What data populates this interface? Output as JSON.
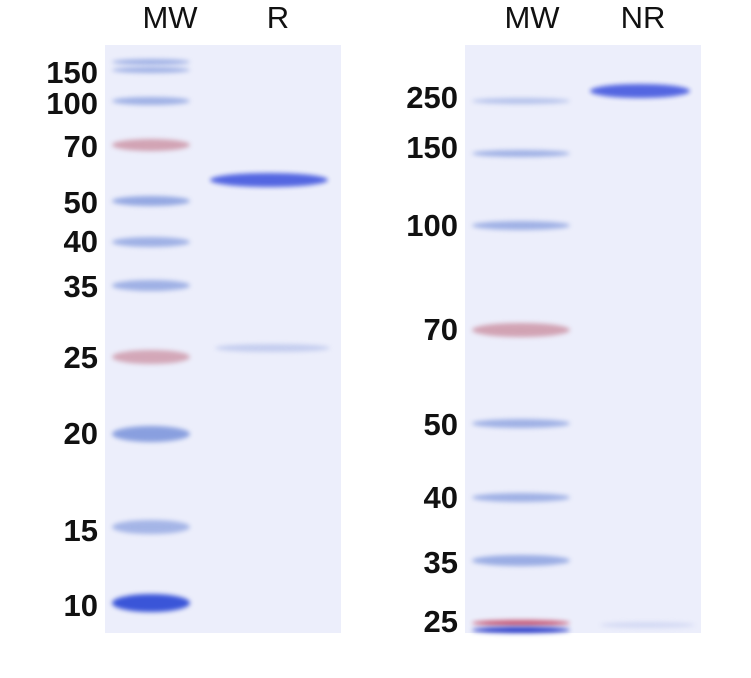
{
  "left_panel": {
    "lane_headers": [
      "MW",
      "R"
    ],
    "ladder_labels": [
      "150",
      "100",
      "70",
      "50",
      "40",
      "35",
      "25",
      "20",
      "15",
      "10"
    ]
  },
  "right_panel": {
    "lane_headers": [
      "MW",
      "NR"
    ],
    "ladder_labels": [
      "250",
      "150",
      "100",
      "70",
      "50",
      "40",
      "35",
      "25"
    ]
  },
  "colors": {
    "gel_background": "#eceefb",
    "marker_blue": "#7f97dc",
    "marker_red": "#c98a9c",
    "sample_band": "#4c5fe0"
  }
}
